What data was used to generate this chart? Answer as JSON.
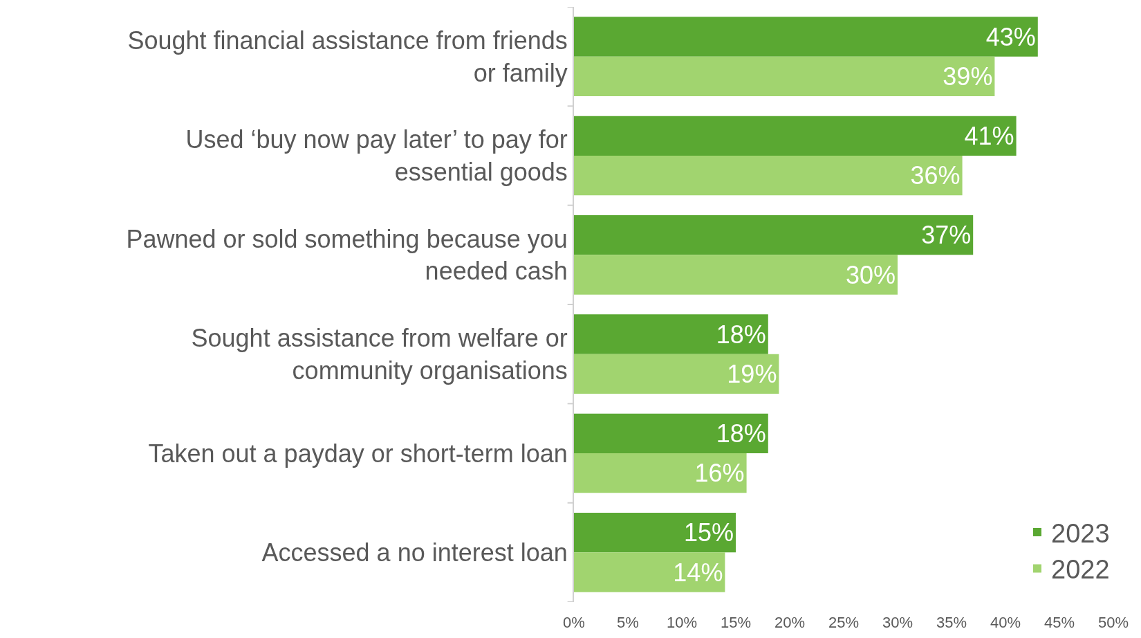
{
  "chart_data": {
    "type": "bar",
    "orientation": "horizontal",
    "categories": [
      "Sought financial assistance from friends or family",
      "Used ‘buy now pay later’ to pay for essential goods",
      "Pawned or sold something because you needed cash",
      "Sought assistance from welfare or community organisations",
      "Taken out a payday or short-term loan",
      "Accessed a no interest loan"
    ],
    "series": [
      {
        "name": "2023",
        "color": "#5aa832",
        "values": [
          43,
          41,
          37,
          18,
          18,
          15
        ],
        "value_labels": [
          "43%",
          "41%",
          "37%",
          "18%",
          "18%",
          "15%"
        ]
      },
      {
        "name": "2022",
        "color": "#a1d46f",
        "values": [
          39,
          36,
          30,
          19,
          16,
          14
        ],
        "value_labels": [
          "39%",
          "36%",
          "30%",
          "19%",
          "16%",
          "14%"
        ]
      }
    ],
    "xlim": [
      0,
      50
    ],
    "xticks": [
      {
        "value": 0,
        "label": "0%"
      },
      {
        "value": 5,
        "label": "5%"
      },
      {
        "value": 10,
        "label": "10%"
      },
      {
        "value": 15,
        "label": "15%"
      },
      {
        "value": 20,
        "label": "20%"
      },
      {
        "value": 25,
        "label": "25%"
      },
      {
        "value": 30,
        "label": "30%"
      },
      {
        "value": 35,
        "label": "35%"
      },
      {
        "value": 40,
        "label": "40%"
      },
      {
        "value": 45,
        "label": "45%"
      },
      {
        "value": 50,
        "label": "50%"
      }
    ],
    "legend": "bottom right"
  }
}
